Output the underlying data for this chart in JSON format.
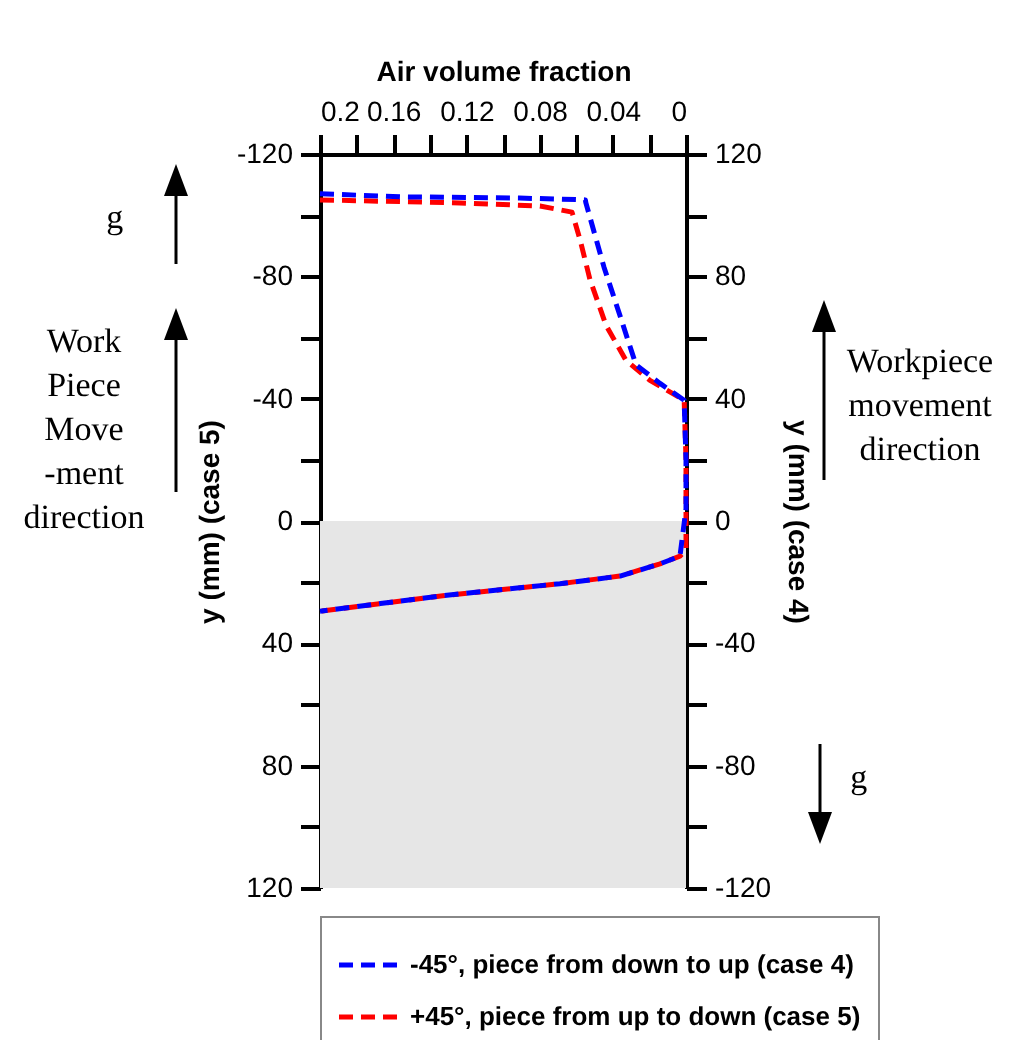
{
  "chart_data": {
    "type": "line",
    "xlabel": "Air volume fraction",
    "ylabel": "y (mm) (case 5)",
    "y2label": "y (mm) (case 4)",
    "xlim": [
      0.2,
      0
    ],
    "xticks": [
      0.2,
      {
        "value": 0.18,
        "label": null
      },
      0.16,
      {
        "value": 0.14,
        "label": null
      },
      0.12,
      {
        "value": 0.1,
        "label": null
      },
      0.08,
      {
        "value": 0.06,
        "label": null
      },
      0.04,
      {
        "value": 0.02,
        "label": null
      },
      0
    ],
    "ylim": [
      120,
      -120
    ],
    "yticks": [
      -120,
      {
        "value": -100,
        "label": null
      },
      -80,
      {
        "value": -60,
        "label": null
      },
      -40,
      {
        "value": -20,
        "label": null
      },
      0,
      {
        "value": 20,
        "label": null
      },
      40,
      {
        "value": 60,
        "label": null
      },
      80,
      {
        "value": 100,
        "label": null
      },
      120
    ],
    "y2lim": [
      -120,
      120
    ],
    "y2ticks": [
      -120,
      {
        "value": -100,
        "label": null
      },
      -80,
      {
        "value": -60,
        "label": null
      },
      -40,
      {
        "value": -20,
        "label": null
      },
      0,
      {
        "value": 20,
        "label": null
      },
      40,
      {
        "value": 60,
        "label": null
      },
      80,
      {
        "value": 100,
        "label": null
      },
      120
    ],
    "series": [
      {
        "name": "-45°, piece from down to up (case 4)",
        "color": "#0000ff",
        "axis": "y2",
        "line_style": "dashed",
        "x": [
          0.2,
          0.156,
          0.091,
          0.055,
          0.0547,
          0.0448,
          0.036,
          0.0273,
          0.0142,
          0.001,
          0,
          0,
          0.0033,
          0.0142,
          0.036,
          0.0689,
          0.1016,
          0.134,
          0.167,
          0.2
        ],
        "values": [
          107,
          106,
          105.6,
          105,
          104,
          83,
          67,
          51,
          45,
          39.5,
          20,
          4,
          -11.5,
          -14,
          -18,
          -20.5,
          -22.5,
          -24.5,
          -27,
          -29.5
        ]
      },
      {
        "name": "+45°, piece from up to down (case 5)",
        "color": "#ff0000",
        "line_style": "dashed",
        "x": [
          0.2,
          0.1235,
          0.0798,
          0.0623,
          0.0579,
          0.0525,
          0.0437,
          0.0328,
          0.0197,
          0.001,
          0,
          0,
          0.0033,
          0.0142,
          0.036,
          0.0689,
          0.1016,
          0.134,
          0.167,
          0.2
        ],
        "values": [
          -105,
          -104,
          -103,
          -101,
          -92,
          -79,
          -64,
          -52.5,
          -46,
          -39.5,
          -20,
          9.5,
          11.5,
          14,
          18,
          20.5,
          22.5,
          24.5,
          27,
          29.5
        ]
      }
    ],
    "bands": [
      {
        "axis": "y",
        "from": 0,
        "to": 120,
        "color": "#e6e6e6"
      }
    ],
    "annotations": [
      "g⃗",
      "Work\nPiece\nMove\n-ment\ndirection",
      "Workpiece\nmovement\ndirection",
      "g⃗"
    ],
    "legend": "bottom",
    "grid": false,
    "marker": "none"
  }
}
